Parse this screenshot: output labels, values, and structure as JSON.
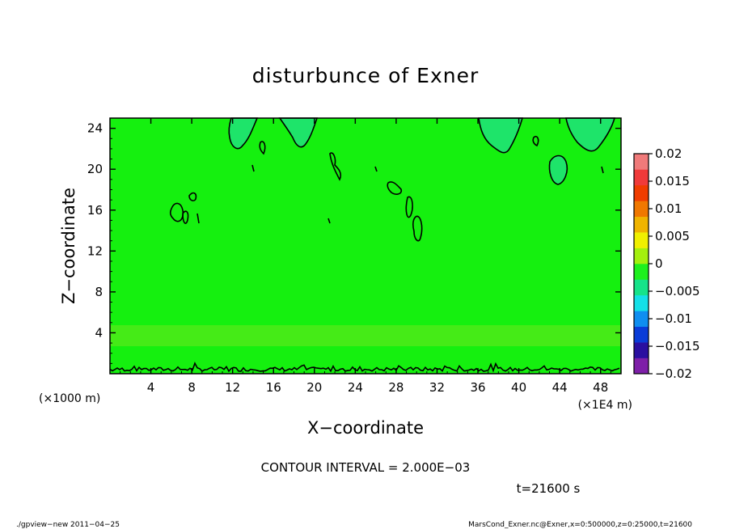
{
  "chart_data": {
    "type": "heatmap",
    "title": "disturbunce of Exner",
    "xlabel": "X−coordinate",
    "ylabel": "Z−coordinate",
    "x_unit_left": "(×1000 m)",
    "x_unit_right": "(×1E4 m)",
    "xlim": [
      0,
      50
    ],
    "ylim": [
      0,
      25
    ],
    "x_ticks": [
      4,
      8,
      12,
      16,
      20,
      24,
      28,
      32,
      36,
      40,
      44,
      48
    ],
    "y_ticks": [
      4,
      8,
      12,
      16,
      20,
      24
    ],
    "colorbar": {
      "range": [
        -0.02,
        0.02
      ],
      "tick_values": [
        0.02,
        0.015,
        0.01,
        0.005,
        0,
        -0.005,
        -0.01,
        -0.015,
        -0.02
      ],
      "tick_labels": [
        "0.02",
        "0.015",
        "0.01",
        "0.005",
        "0",
        "−0.005",
        "−0.01",
        "−0.015",
        "−0.02"
      ],
      "colors": [
        "#7e1fa8",
        "#2a0fa0",
        "#0a3cd8",
        "#0f8ef0",
        "#14e0e8",
        "#16e38a",
        "#1ef01e",
        "#a4f00e",
        "#f0f000",
        "#f0b400",
        "#f07800",
        "#f03c00",
        "#f03a3a",
        "#f07a7a"
      ]
    },
    "field_color": "#15f00f",
    "lower_band_color": "#56ea1b",
    "upper_patch_color": "#1ee46a",
    "contour_interval_text": "CONTOUR INTERVAL = 2.000E−03",
    "time_text": "t=21600 s"
  },
  "footer": {
    "left": "./gpview−new   2011−04−25",
    "right": "MarsCond_Exner.nc@Exner,x=0:500000,z=0:25000,t=21600"
  }
}
